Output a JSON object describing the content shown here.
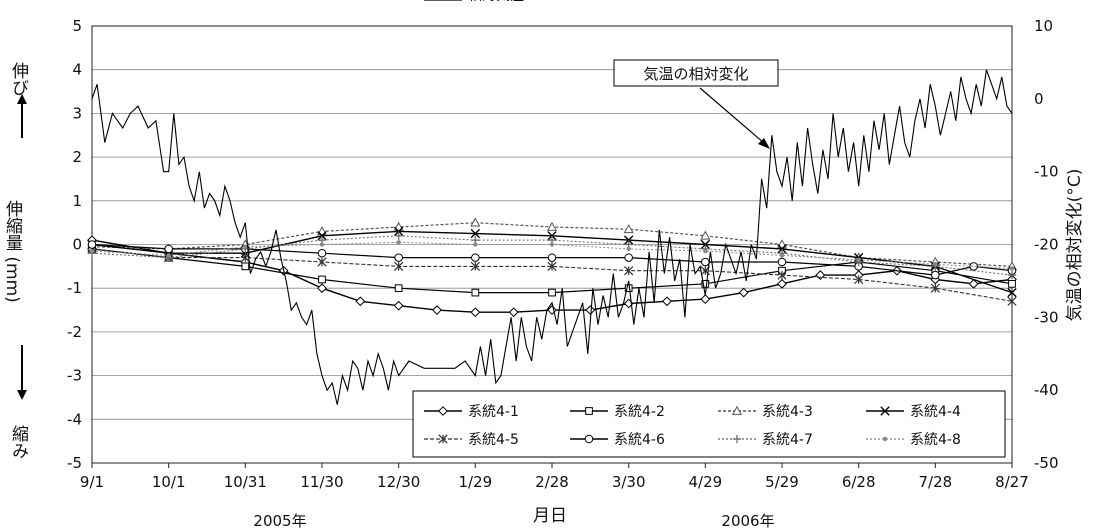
{
  "chart_data": {
    "type": "line",
    "xlabel": "月日",
    "year_labels": [
      "2005年",
      "2006年"
    ],
    "x_ticks": [
      "9/1",
      "10/1",
      "10/31",
      "11/30",
      "12/30",
      "1/29",
      "2/28",
      "3/30",
      "4/29",
      "5/29",
      "6/28",
      "7/28",
      "8/27"
    ],
    "xlim": [
      0,
      360
    ],
    "y_left": {
      "label": "伸縮量  (mm)",
      "ticks": [
        5,
        4,
        3,
        2,
        1,
        0,
        -1,
        -2,
        -3,
        -4,
        -5
      ],
      "ylim": [
        -5,
        5
      ]
    },
    "y_right": {
      "label": "気温の相対変化(°C)",
      "ticks": [
        10,
        0,
        -10,
        -20,
        -30,
        -40,
        -50
      ],
      "ylim": [
        -50,
        10
      ]
    },
    "side_labels": {
      "top": "伸び",
      "bottom": "縮み"
    },
    "annotation": "気温の相対変化",
    "grid": true,
    "legend_position": "bottom-right inside plot",
    "series": [
      {
        "name": "系統4-1",
        "axis": "left",
        "marker": "diamond",
        "points": [
          [
            0,
            0.1
          ],
          [
            30,
            -0.2
          ],
          [
            60,
            -0.4
          ],
          [
            75,
            -0.6
          ],
          [
            90,
            -1.0
          ],
          [
            105,
            -1.3
          ],
          [
            120,
            -1.4
          ],
          [
            135,
            -1.5
          ],
          [
            150,
            -1.55
          ],
          [
            165,
            -1.55
          ],
          [
            180,
            -1.5
          ],
          [
            195,
            -1.5
          ],
          [
            210,
            -1.35
          ],
          [
            225,
            -1.3
          ],
          [
            240,
            -1.25
          ],
          [
            255,
            -1.1
          ],
          [
            270,
            -0.9
          ],
          [
            285,
            -0.7
          ],
          [
            300,
            -0.7
          ],
          [
            315,
            -0.6
          ],
          [
            330,
            -0.8
          ],
          [
            345,
            -0.9
          ],
          [
            360,
            -0.8
          ]
        ]
      },
      {
        "name": "系統4-2",
        "axis": "left",
        "marker": "square",
        "points": [
          [
            0,
            -0.1
          ],
          [
            30,
            -0.3
          ],
          [
            60,
            -0.5
          ],
          [
            90,
            -0.8
          ],
          [
            120,
            -1.0
          ],
          [
            150,
            -1.1
          ],
          [
            180,
            -1.1
          ],
          [
            210,
            -1.0
          ],
          [
            240,
            -0.9
          ],
          [
            270,
            -0.6
          ],
          [
            300,
            -0.4
          ],
          [
            330,
            -0.6
          ],
          [
            360,
            -0.9
          ]
        ]
      },
      {
        "name": "系統4-3",
        "axis": "left",
        "marker": "triangle",
        "points": [
          [
            0,
            -0.05
          ],
          [
            30,
            -0.1
          ],
          [
            60,
            0.0
          ],
          [
            90,
            0.3
          ],
          [
            120,
            0.4
          ],
          [
            150,
            0.5
          ],
          [
            180,
            0.4
          ],
          [
            210,
            0.35
          ],
          [
            240,
            0.2
          ],
          [
            270,
            0.0
          ],
          [
            300,
            -0.3
          ],
          [
            330,
            -0.4
          ],
          [
            360,
            -0.5
          ]
        ]
      },
      {
        "name": "系統4-4",
        "axis": "left",
        "marker": "x",
        "points": [
          [
            0,
            0.0
          ],
          [
            30,
            -0.2
          ],
          [
            60,
            -0.2
          ],
          [
            90,
            0.2
          ],
          [
            120,
            0.3
          ],
          [
            150,
            0.25
          ],
          [
            180,
            0.2
          ],
          [
            210,
            0.1
          ],
          [
            240,
            0.0
          ],
          [
            270,
            -0.1
          ],
          [
            300,
            -0.3
          ],
          [
            330,
            -0.5
          ],
          [
            360,
            -1.1
          ]
        ]
      },
      {
        "name": "系統4-5",
        "axis": "left",
        "marker": "asterisk",
        "points": [
          [
            0,
            -0.1
          ],
          [
            30,
            -0.3
          ],
          [
            60,
            -0.3
          ],
          [
            90,
            -0.4
          ],
          [
            120,
            -0.5
          ],
          [
            150,
            -0.5
          ],
          [
            180,
            -0.5
          ],
          [
            210,
            -0.6
          ],
          [
            240,
            -0.6
          ],
          [
            270,
            -0.7
          ],
          [
            300,
            -0.8
          ],
          [
            330,
            -1.0
          ],
          [
            360,
            -1.3
          ]
        ]
      },
      {
        "name": "系統4-6",
        "axis": "left",
        "marker": "circle",
        "points": [
          [
            0,
            0.0
          ],
          [
            30,
            -0.1
          ],
          [
            60,
            -0.1
          ],
          [
            90,
            -0.2
          ],
          [
            120,
            -0.3
          ],
          [
            150,
            -0.3
          ],
          [
            180,
            -0.3
          ],
          [
            210,
            -0.3
          ],
          [
            240,
            -0.4
          ],
          [
            270,
            -0.4
          ],
          [
            300,
            -0.5
          ],
          [
            330,
            -0.7
          ],
          [
            345,
            -0.5
          ],
          [
            360,
            -0.6
          ]
        ]
      },
      {
        "name": "系統4-7",
        "axis": "left",
        "marker": "plus",
        "points": [
          [
            0,
            -0.2
          ],
          [
            30,
            -0.3
          ],
          [
            60,
            -0.1
          ],
          [
            90,
            0.1
          ],
          [
            120,
            0.2
          ],
          [
            150,
            0.1
          ],
          [
            180,
            0.1
          ],
          [
            210,
            0.0
          ],
          [
            240,
            -0.1
          ],
          [
            270,
            -0.2
          ],
          [
            300,
            -0.4
          ],
          [
            330,
            -0.5
          ],
          [
            360,
            -0.7
          ]
        ]
      },
      {
        "name": "系統4-8",
        "axis": "left",
        "marker": "dot",
        "points": [
          [
            0,
            -0.15
          ],
          [
            30,
            -0.25
          ],
          [
            60,
            -0.05
          ],
          [
            90,
            0.0
          ],
          [
            120,
            0.05
          ],
          [
            150,
            0.0
          ],
          [
            180,
            0.0
          ],
          [
            210,
            -0.1
          ],
          [
            240,
            -0.15
          ],
          [
            270,
            -0.25
          ],
          [
            300,
            -0.35
          ],
          [
            330,
            -0.45
          ],
          [
            360,
            -0.55
          ]
        ]
      },
      {
        "name": "相対気温",
        "axis": "right",
        "marker": "none",
        "points": [
          [
            0,
            0
          ],
          [
            2,
            2
          ],
          [
            5,
            -6
          ],
          [
            8,
            -2
          ],
          [
            12,
            -4
          ],
          [
            15,
            -2
          ],
          [
            18,
            -1
          ],
          [
            22,
            -4
          ],
          [
            25,
            -3
          ],
          [
            28,
            -10
          ],
          [
            30,
            -10
          ],
          [
            32,
            -2
          ],
          [
            34,
            -9
          ],
          [
            36,
            -8
          ],
          [
            38,
            -12
          ],
          [
            40,
            -14
          ],
          [
            42,
            -10
          ],
          [
            44,
            -15
          ],
          [
            46,
            -13
          ],
          [
            48,
            -14
          ],
          [
            50,
            -16
          ],
          [
            52,
            -12
          ],
          [
            54,
            -14
          ],
          [
            56,
            -17
          ],
          [
            58,
            -19
          ],
          [
            60,
            -17
          ],
          [
            62,
            -24
          ],
          [
            64,
            -22
          ],
          [
            66,
            -21
          ],
          [
            68,
            -23
          ],
          [
            70,
            -21
          ],
          [
            72,
            -18
          ],
          [
            74,
            -22
          ],
          [
            76,
            -25
          ],
          [
            78,
            -29
          ],
          [
            80,
            -28
          ],
          [
            82,
            -30
          ],
          [
            84,
            -31
          ],
          [
            86,
            -29
          ],
          [
            88,
            -35
          ],
          [
            90,
            -38
          ],
          [
            92,
            -40
          ],
          [
            94,
            -39
          ],
          [
            96,
            -42
          ],
          [
            98,
            -38
          ],
          [
            100,
            -40
          ],
          [
            102,
            -36
          ],
          [
            104,
            -37
          ],
          [
            106,
            -40
          ],
          [
            108,
            -36
          ],
          [
            110,
            -38
          ],
          [
            112,
            -35
          ],
          [
            114,
            -37
          ],
          [
            116,
            -40
          ],
          [
            118,
            -36
          ],
          [
            120,
            -38
          ],
          [
            124,
            -36
          ],
          [
            130,
            -37
          ],
          [
            136,
            -37
          ],
          [
            142,
            -37
          ],
          [
            146,
            -36
          ],
          [
            150,
            -38
          ],
          [
            152,
            -34
          ],
          [
            154,
            -38
          ],
          [
            156,
            -33
          ],
          [
            158,
            -39
          ],
          [
            160,
            -38
          ],
          [
            162,
            -34
          ],
          [
            164,
            -30
          ],
          [
            166,
            -36
          ],
          [
            168,
            -30
          ],
          [
            170,
            -34
          ],
          [
            172,
            -36
          ],
          [
            174,
            -30
          ],
          [
            176,
            -33
          ],
          [
            178,
            -29
          ],
          [
            180,
            -28
          ],
          [
            182,
            -31
          ],
          [
            184,
            -26
          ],
          [
            186,
            -34
          ],
          [
            188,
            -32
          ],
          [
            190,
            -30
          ],
          [
            192,
            -28
          ],
          [
            194,
            -35
          ],
          [
            196,
            -26
          ],
          [
            198,
            -31
          ],
          [
            200,
            -27
          ],
          [
            202,
            -30
          ],
          [
            204,
            -24
          ],
          [
            206,
            -30
          ],
          [
            208,
            -28
          ],
          [
            210,
            -25
          ],
          [
            212,
            -31
          ],
          [
            214,
            -26
          ],
          [
            216,
            -30
          ],
          [
            218,
            -21
          ],
          [
            220,
            -28
          ],
          [
            222,
            -18
          ],
          [
            224,
            -24
          ],
          [
            226,
            -19
          ],
          [
            228,
            -25
          ],
          [
            230,
            -22
          ],
          [
            232,
            -30
          ],
          [
            234,
            -20
          ],
          [
            236,
            -24
          ],
          [
            238,
            -23
          ],
          [
            240,
            -27
          ],
          [
            242,
            -21
          ],
          [
            244,
            -26
          ],
          [
            246,
            -24
          ],
          [
            248,
            -20
          ],
          [
            250,
            -22
          ],
          [
            252,
            -24
          ],
          [
            254,
            -21
          ],
          [
            256,
            -25
          ],
          [
            258,
            -20
          ],
          [
            260,
            -22
          ],
          [
            262,
            -11
          ],
          [
            264,
            -15
          ],
          [
            266,
            -5
          ],
          [
            268,
            -10
          ],
          [
            270,
            -12
          ],
          [
            272,
            -8
          ],
          [
            274,
            -14
          ],
          [
            276,
            -6
          ],
          [
            278,
            -12
          ],
          [
            280,
            -4
          ],
          [
            282,
            -9
          ],
          [
            284,
            -13
          ],
          [
            286,
            -7
          ],
          [
            288,
            -11
          ],
          [
            290,
            -2
          ],
          [
            292,
            -8
          ],
          [
            294,
            -4
          ],
          [
            296,
            -10
          ],
          [
            298,
            -6
          ],
          [
            300,
            -12
          ],
          [
            302,
            -5
          ],
          [
            304,
            -10
          ],
          [
            306,
            -3
          ],
          [
            308,
            -7
          ],
          [
            310,
            -2
          ],
          [
            312,
            -9
          ],
          [
            314,
            -5
          ],
          [
            316,
            -1
          ],
          [
            318,
            -6
          ],
          [
            320,
            -8
          ],
          [
            322,
            -3
          ],
          [
            324,
            0
          ],
          [
            326,
            -4
          ],
          [
            328,
            2
          ],
          [
            330,
            -1
          ],
          [
            332,
            -5
          ],
          [
            334,
            -2
          ],
          [
            336,
            1
          ],
          [
            338,
            -3
          ],
          [
            340,
            3
          ],
          [
            342,
            0
          ],
          [
            344,
            -2
          ],
          [
            346,
            2
          ],
          [
            348,
            -1
          ],
          [
            350,
            4
          ],
          [
            352,
            2
          ],
          [
            354,
            0
          ],
          [
            356,
            3
          ],
          [
            358,
            -1
          ],
          [
            360,
            -2
          ]
        ]
      }
    ]
  }
}
